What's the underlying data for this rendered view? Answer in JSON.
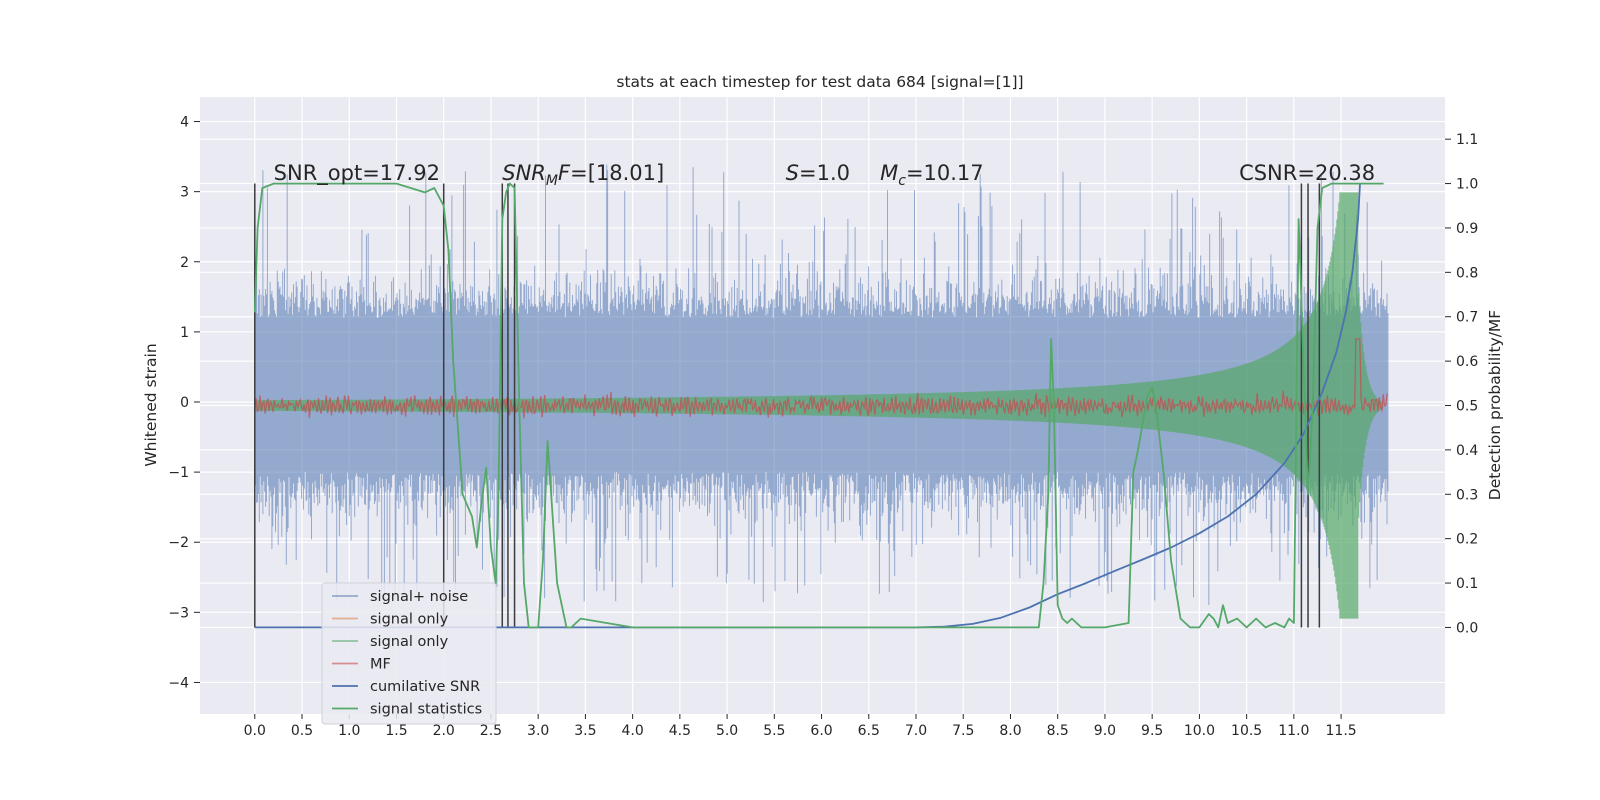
{
  "chart_data": {
    "type": "line",
    "title": "stats at each timestep for test data 684 [signal=[1]]",
    "xlabel": "",
    "ylabel": "Whitened strain",
    "y2label": "Detection probability/MF",
    "xlim": [
      -0.58,
      12.6
    ],
    "ylim": [
      -4.45,
      4.35
    ],
    "y2lim": [
      -0.195,
      1.195
    ],
    "x_ticks": [
      0.0,
      0.5,
      1.0,
      1.5,
      2.0,
      2.5,
      3.0,
      3.5,
      4.0,
      4.5,
      5.0,
      5.5,
      6.0,
      6.5,
      7.0,
      7.5,
      8.0,
      8.5,
      9.0,
      9.5,
      10.0,
      10.5,
      11.0,
      11.5
    ],
    "x_tick_labels": [
      "0.0",
      "0.5",
      "1.0",
      "1.5",
      "2.0",
      "2.5",
      "3.0",
      "3.5",
      "4.0",
      "4.5",
      "5.0",
      "5.5",
      "6.0",
      "6.5",
      "7.0",
      "7.5",
      "8.0",
      "8.5",
      "9.0",
      "9.5",
      "10.0",
      "10.5",
      "11.0",
      "11.5"
    ],
    "y_ticks": [
      -4,
      -3,
      -2,
      -1,
      0,
      1,
      2,
      3,
      4
    ],
    "y_tick_labels": [
      "−4",
      "−3",
      "−2",
      "−1",
      "0",
      "1",
      "2",
      "3",
      "4"
    ],
    "y2_ticks": [
      0.0,
      0.1,
      0.2,
      0.3,
      0.4,
      0.5,
      0.6,
      0.7,
      0.8,
      0.9,
      1.0,
      1.1
    ],
    "y2_tick_labels": [
      "0.0",
      "0.1",
      "0.2",
      "0.3",
      "0.4",
      "0.5",
      "0.6",
      "0.7",
      "0.8",
      "0.9",
      "1.0",
      "1.1"
    ],
    "grid": true,
    "legend_placement": "lower-left",
    "annotations": [
      {
        "id": "snr-opt",
        "text": "SNR_opt=17.92",
        "x": 0.2,
        "y": 3.08
      },
      {
        "id": "snr-mf",
        "base": "SNR",
        "sub": "M",
        "rest": "F=[18.01]",
        "x": 2.62,
        "y": 3.08
      },
      {
        "id": "s-val",
        "italic": "S",
        "rest": "=1.0",
        "x": 5.62,
        "y": 3.08
      },
      {
        "id": "mc-val",
        "italic": "M",
        "sub": "c",
        "rest": "=10.17",
        "x": 6.62,
        "y": 3.08
      },
      {
        "id": "csnr",
        "text": "CSNR=20.38",
        "x": 10.42,
        "y": 3.08
      }
    ],
    "vertical_lines_x": [
      0.0,
      2.0,
      2.62,
      2.68,
      2.75,
      11.08,
      11.15,
      11.27
    ],
    "colors": {
      "background": "#eaeaf2",
      "grid": "#ffffff",
      "signal_noise": "#4c72b0",
      "signal_only": "#dd8452",
      "signal_only_whitened": "#55a868",
      "mf": "#c44e52",
      "cumulative_snr": "#4c72b0",
      "signal_statistics": "#55a868",
      "vlines": "#3c3c3c"
    },
    "series": [
      {
        "key": "noise",
        "axis": "left",
        "generated": "noise",
        "x_range": [
          0.0,
          12.0
        ],
        "amplitude_range": [
          -3.1,
          3.9
        ],
        "color": "#4c72b0"
      },
      {
        "key": "signal",
        "axis": "right",
        "generated": "chirp",
        "x_range": [
          0.0,
          11.95
        ],
        "peak_time": 11.68,
        "color": "#55a868"
      },
      {
        "key": "mf",
        "axis": "right",
        "generated": "mf",
        "x_range": [
          0.0,
          12.0
        ],
        "peak_time": 11.68,
        "peak": 0.65,
        "color": "#c44e52"
      },
      {
        "key": "csnr",
        "axis": "right",
        "color": "#4c72b0",
        "x": [
          0.0,
          7.0,
          7.3,
          7.6,
          7.9,
          8.2,
          8.5,
          8.8,
          9.1,
          9.4,
          9.7,
          10.0,
          10.3,
          10.6,
          10.9,
          11.1,
          11.3,
          11.45,
          11.55,
          11.62,
          11.68,
          11.7
        ],
        "y": [
          0.0,
          0.0,
          0.002,
          0.008,
          0.022,
          0.045,
          0.075,
          0.1,
          0.127,
          0.153,
          0.18,
          0.212,
          0.25,
          0.3,
          0.37,
          0.435,
          0.53,
          0.62,
          0.71,
          0.8,
          0.92,
          1.0
        ]
      },
      {
        "key": "stats",
        "axis": "right",
        "color": "#55a868",
        "x": [
          0.0,
          0.03,
          0.08,
          0.2,
          0.5,
          1.0,
          1.5,
          1.8,
          1.9,
          2.0,
          2.05,
          2.1,
          2.2,
          2.3,
          2.35,
          2.4,
          2.45,
          2.5,
          2.55,
          2.58,
          2.62,
          2.66,
          2.7,
          2.75,
          2.8,
          2.85,
          2.9,
          3.0,
          3.05,
          3.1,
          3.2,
          3.3,
          3.35,
          3.45,
          4.0,
          8.3,
          8.35,
          8.4,
          8.43,
          8.46,
          8.5,
          8.55,
          8.6,
          8.65,
          8.75,
          9.0,
          9.25,
          9.3,
          9.35,
          9.45,
          9.5,
          9.55,
          9.62,
          9.7,
          9.8,
          9.9,
          10.0,
          10.1,
          10.15,
          10.2,
          10.25,
          10.3,
          10.4,
          10.5,
          10.55,
          10.6,
          10.7,
          10.8,
          10.9,
          10.95,
          11.0,
          11.05,
          11.07,
          11.1,
          11.15,
          11.2,
          11.25,
          11.3,
          11.4,
          11.5,
          11.6,
          11.65,
          11.95
        ],
        "y": [
          0.71,
          0.9,
          0.99,
          1.0,
          1.0,
          1.0,
          1.0,
          0.98,
          0.99,
          0.95,
          0.85,
          0.6,
          0.3,
          0.25,
          0.18,
          0.28,
          0.36,
          0.18,
          0.1,
          0.3,
          0.92,
          0.98,
          1.0,
          0.99,
          0.5,
          0.1,
          0.0,
          0.0,
          0.15,
          0.42,
          0.1,
          0.0,
          0.0,
          0.02,
          0.0,
          0.0,
          0.1,
          0.3,
          0.65,
          0.5,
          0.05,
          0.02,
          0.01,
          0.02,
          0.0,
          0.0,
          0.01,
          0.35,
          0.4,
          0.52,
          0.54,
          0.48,
          0.35,
          0.15,
          0.02,
          0.0,
          0.0,
          0.03,
          0.02,
          0.0,
          0.05,
          0.01,
          0.02,
          0.0,
          0.01,
          0.02,
          0.0,
          0.01,
          0.0,
          0.02,
          0.01,
          0.92,
          0.8,
          0.6,
          0.3,
          0.5,
          0.9,
          0.99,
          1.0,
          1.0,
          1.0,
          1.0,
          1.0
        ]
      }
    ],
    "legend": [
      {
        "label": "signal+ noise",
        "color": "#4c72b0",
        "alpha": 0.55
      },
      {
        "label": "signal only",
        "color": "#dd8452",
        "alpha": 0.6
      },
      {
        "label": "signal only",
        "color": "#55a868",
        "alpha": 0.6
      },
      {
        "label": "MF",
        "color": "#c44e52",
        "alpha": 0.6
      },
      {
        "label": "cumilative SNR",
        "color": "#4c72b0",
        "alpha": 1
      },
      {
        "label": "signal statistics",
        "color": "#55a868",
        "alpha": 1
      }
    ]
  }
}
